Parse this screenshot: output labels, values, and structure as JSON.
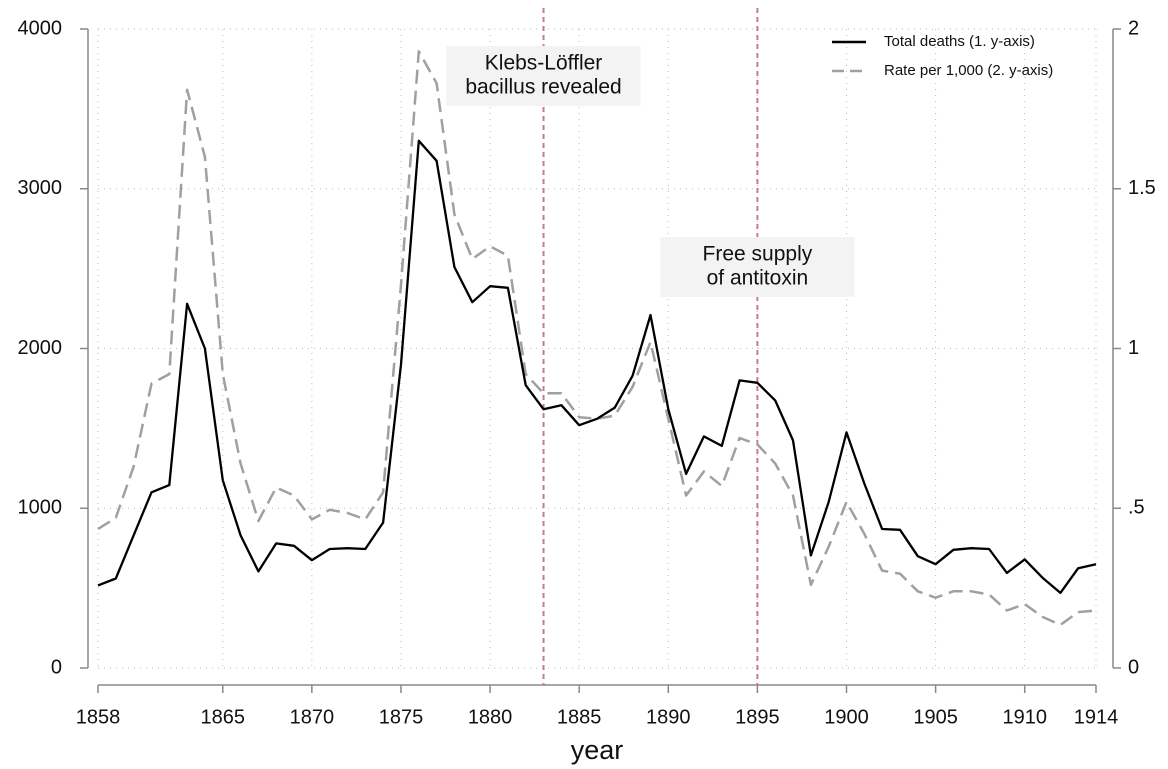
{
  "chart_data": {
    "type": "line",
    "x": [
      1858,
      1859,
      1860,
      1861,
      1862,
      1863,
      1864,
      1865,
      1866,
      1867,
      1868,
      1869,
      1870,
      1871,
      1872,
      1873,
      1874,
      1875,
      1876,
      1877,
      1878,
      1879,
      1880,
      1881,
      1882,
      1883,
      1884,
      1885,
      1886,
      1887,
      1888,
      1889,
      1890,
      1891,
      1892,
      1893,
      1894,
      1895,
      1896,
      1897,
      1898,
      1899,
      1900,
      1901,
      1902,
      1903,
      1904,
      1905,
      1906,
      1907,
      1908,
      1909,
      1910,
      1911,
      1912,
      1913,
      1914
    ],
    "series": [
      {
        "name": "Total deaths (1. y-axis)",
        "color": "#000000",
        "style": "solid",
        "values": [
          517,
          560,
          830,
          1100,
          1145,
          2280,
          2000,
          1175,
          830,
          605,
          780,
          765,
          675,
          745,
          750,
          745,
          910,
          1900,
          3300,
          3175,
          2510,
          2290,
          2390,
          2380,
          1770,
          1620,
          1645,
          1520,
          1560,
          1630,
          1830,
          2210,
          1620,
          1215,
          1450,
          1390,
          1800,
          1785,
          1675,
          1425,
          705,
          1040,
          1475,
          1155,
          870,
          865,
          700,
          650,
          740,
          750,
          745,
          595,
          680,
          565,
          470,
          625,
          650
        ]
      },
      {
        "name": "Rate per 1,000 (2. y-axis)",
        "color": "#a0a0a0",
        "style": "dashed",
        "axis": "y2",
        "values": [
          0.435,
          0.47,
          0.63,
          0.89,
          0.92,
          1.81,
          1.6,
          0.92,
          0.64,
          0.46,
          0.565,
          0.54,
          0.465,
          0.495,
          0.485,
          0.465,
          0.55,
          1.2,
          1.93,
          1.83,
          1.42,
          1.28,
          1.32,
          1.29,
          0.92,
          0.86,
          0.86,
          0.785,
          0.78,
          0.79,
          0.88,
          1.02,
          0.78,
          0.54,
          0.615,
          0.57,
          0.72,
          0.7,
          0.64,
          0.54,
          0.26,
          0.38,
          0.52,
          0.42,
          0.305,
          0.295,
          0.24,
          0.22,
          0.24,
          0.24,
          0.23,
          0.18,
          0.2,
          0.16,
          0.135,
          0.175,
          0.18
        ]
      }
    ],
    "x_label": "year",
    "xlim": [
      1858,
      1914
    ],
    "xticks": [
      1858,
      1865,
      1870,
      1875,
      1880,
      1885,
      1890,
      1895,
      1900,
      1905,
      1910,
      1914
    ],
    "ylim": [
      0,
      4000
    ],
    "yticks": [
      0,
      1000,
      2000,
      3000,
      4000
    ],
    "y2lim": [
      0,
      2
    ],
    "y2ticks": [
      0,
      {
        "value": 0.5,
        "label": ".5"
      },
      1,
      1.5,
      2
    ],
    "grid": true,
    "legend": "top-right",
    "annotations": [
      {
        "x": 1883,
        "lines": [
          "Klebs-Löffler",
          "bacillus revealed"
        ],
        "color": "#c9779b"
      },
      {
        "x": 1895,
        "lines": [
          "Free supply",
          "of antitoxin"
        ],
        "color": "#c9779b"
      }
    ]
  }
}
